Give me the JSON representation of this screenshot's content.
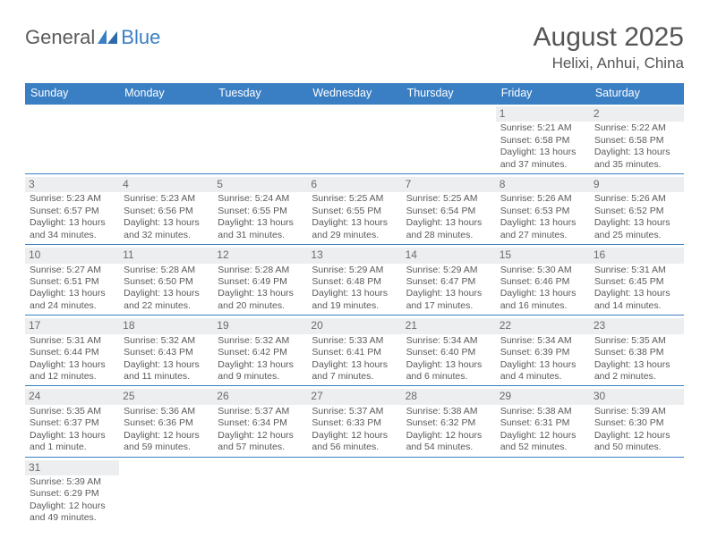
{
  "logo": {
    "part1": "General",
    "part2": "Blue"
  },
  "title": "August 2025",
  "location": "Helixi, Anhui, China",
  "colors": {
    "header_bg": "#3a7fc4",
    "header_text": "#ffffff",
    "daynum_bg": "#eceef0",
    "text": "#5a5a5a",
    "rule": "#3a7fc4"
  },
  "weekdays": [
    "Sunday",
    "Monday",
    "Tuesday",
    "Wednesday",
    "Thursday",
    "Friday",
    "Saturday"
  ],
  "weeks": [
    [
      null,
      null,
      null,
      null,
      null,
      {
        "n": "1",
        "sr": "Sunrise: 5:21 AM",
        "ss": "Sunset: 6:58 PM",
        "dl": "Daylight: 13 hours and 37 minutes."
      },
      {
        "n": "2",
        "sr": "Sunrise: 5:22 AM",
        "ss": "Sunset: 6:58 PM",
        "dl": "Daylight: 13 hours and 35 minutes."
      }
    ],
    [
      {
        "n": "3",
        "sr": "Sunrise: 5:23 AM",
        "ss": "Sunset: 6:57 PM",
        "dl": "Daylight: 13 hours and 34 minutes."
      },
      {
        "n": "4",
        "sr": "Sunrise: 5:23 AM",
        "ss": "Sunset: 6:56 PM",
        "dl": "Daylight: 13 hours and 32 minutes."
      },
      {
        "n": "5",
        "sr": "Sunrise: 5:24 AM",
        "ss": "Sunset: 6:55 PM",
        "dl": "Daylight: 13 hours and 31 minutes."
      },
      {
        "n": "6",
        "sr": "Sunrise: 5:25 AM",
        "ss": "Sunset: 6:55 PM",
        "dl": "Daylight: 13 hours and 29 minutes."
      },
      {
        "n": "7",
        "sr": "Sunrise: 5:25 AM",
        "ss": "Sunset: 6:54 PM",
        "dl": "Daylight: 13 hours and 28 minutes."
      },
      {
        "n": "8",
        "sr": "Sunrise: 5:26 AM",
        "ss": "Sunset: 6:53 PM",
        "dl": "Daylight: 13 hours and 27 minutes."
      },
      {
        "n": "9",
        "sr": "Sunrise: 5:26 AM",
        "ss": "Sunset: 6:52 PM",
        "dl": "Daylight: 13 hours and 25 minutes."
      }
    ],
    [
      {
        "n": "10",
        "sr": "Sunrise: 5:27 AM",
        "ss": "Sunset: 6:51 PM",
        "dl": "Daylight: 13 hours and 24 minutes."
      },
      {
        "n": "11",
        "sr": "Sunrise: 5:28 AM",
        "ss": "Sunset: 6:50 PM",
        "dl": "Daylight: 13 hours and 22 minutes."
      },
      {
        "n": "12",
        "sr": "Sunrise: 5:28 AM",
        "ss": "Sunset: 6:49 PM",
        "dl": "Daylight: 13 hours and 20 minutes."
      },
      {
        "n": "13",
        "sr": "Sunrise: 5:29 AM",
        "ss": "Sunset: 6:48 PM",
        "dl": "Daylight: 13 hours and 19 minutes."
      },
      {
        "n": "14",
        "sr": "Sunrise: 5:29 AM",
        "ss": "Sunset: 6:47 PM",
        "dl": "Daylight: 13 hours and 17 minutes."
      },
      {
        "n": "15",
        "sr": "Sunrise: 5:30 AM",
        "ss": "Sunset: 6:46 PM",
        "dl": "Daylight: 13 hours and 16 minutes."
      },
      {
        "n": "16",
        "sr": "Sunrise: 5:31 AM",
        "ss": "Sunset: 6:45 PM",
        "dl": "Daylight: 13 hours and 14 minutes."
      }
    ],
    [
      {
        "n": "17",
        "sr": "Sunrise: 5:31 AM",
        "ss": "Sunset: 6:44 PM",
        "dl": "Daylight: 13 hours and 12 minutes."
      },
      {
        "n": "18",
        "sr": "Sunrise: 5:32 AM",
        "ss": "Sunset: 6:43 PM",
        "dl": "Daylight: 13 hours and 11 minutes."
      },
      {
        "n": "19",
        "sr": "Sunrise: 5:32 AM",
        "ss": "Sunset: 6:42 PM",
        "dl": "Daylight: 13 hours and 9 minutes."
      },
      {
        "n": "20",
        "sr": "Sunrise: 5:33 AM",
        "ss": "Sunset: 6:41 PM",
        "dl": "Daylight: 13 hours and 7 minutes."
      },
      {
        "n": "21",
        "sr": "Sunrise: 5:34 AM",
        "ss": "Sunset: 6:40 PM",
        "dl": "Daylight: 13 hours and 6 minutes."
      },
      {
        "n": "22",
        "sr": "Sunrise: 5:34 AM",
        "ss": "Sunset: 6:39 PM",
        "dl": "Daylight: 13 hours and 4 minutes."
      },
      {
        "n": "23",
        "sr": "Sunrise: 5:35 AM",
        "ss": "Sunset: 6:38 PM",
        "dl": "Daylight: 13 hours and 2 minutes."
      }
    ],
    [
      {
        "n": "24",
        "sr": "Sunrise: 5:35 AM",
        "ss": "Sunset: 6:37 PM",
        "dl": "Daylight: 13 hours and 1 minute."
      },
      {
        "n": "25",
        "sr": "Sunrise: 5:36 AM",
        "ss": "Sunset: 6:36 PM",
        "dl": "Daylight: 12 hours and 59 minutes."
      },
      {
        "n": "26",
        "sr": "Sunrise: 5:37 AM",
        "ss": "Sunset: 6:34 PM",
        "dl": "Daylight: 12 hours and 57 minutes."
      },
      {
        "n": "27",
        "sr": "Sunrise: 5:37 AM",
        "ss": "Sunset: 6:33 PM",
        "dl": "Daylight: 12 hours and 56 minutes."
      },
      {
        "n": "28",
        "sr": "Sunrise: 5:38 AM",
        "ss": "Sunset: 6:32 PM",
        "dl": "Daylight: 12 hours and 54 minutes."
      },
      {
        "n": "29",
        "sr": "Sunrise: 5:38 AM",
        "ss": "Sunset: 6:31 PM",
        "dl": "Daylight: 12 hours and 52 minutes."
      },
      {
        "n": "30",
        "sr": "Sunrise: 5:39 AM",
        "ss": "Sunset: 6:30 PM",
        "dl": "Daylight: 12 hours and 50 minutes."
      }
    ],
    [
      {
        "n": "31",
        "sr": "Sunrise: 5:39 AM",
        "ss": "Sunset: 6:29 PM",
        "dl": "Daylight: 12 hours and 49 minutes."
      },
      null,
      null,
      null,
      null,
      null,
      null
    ]
  ]
}
